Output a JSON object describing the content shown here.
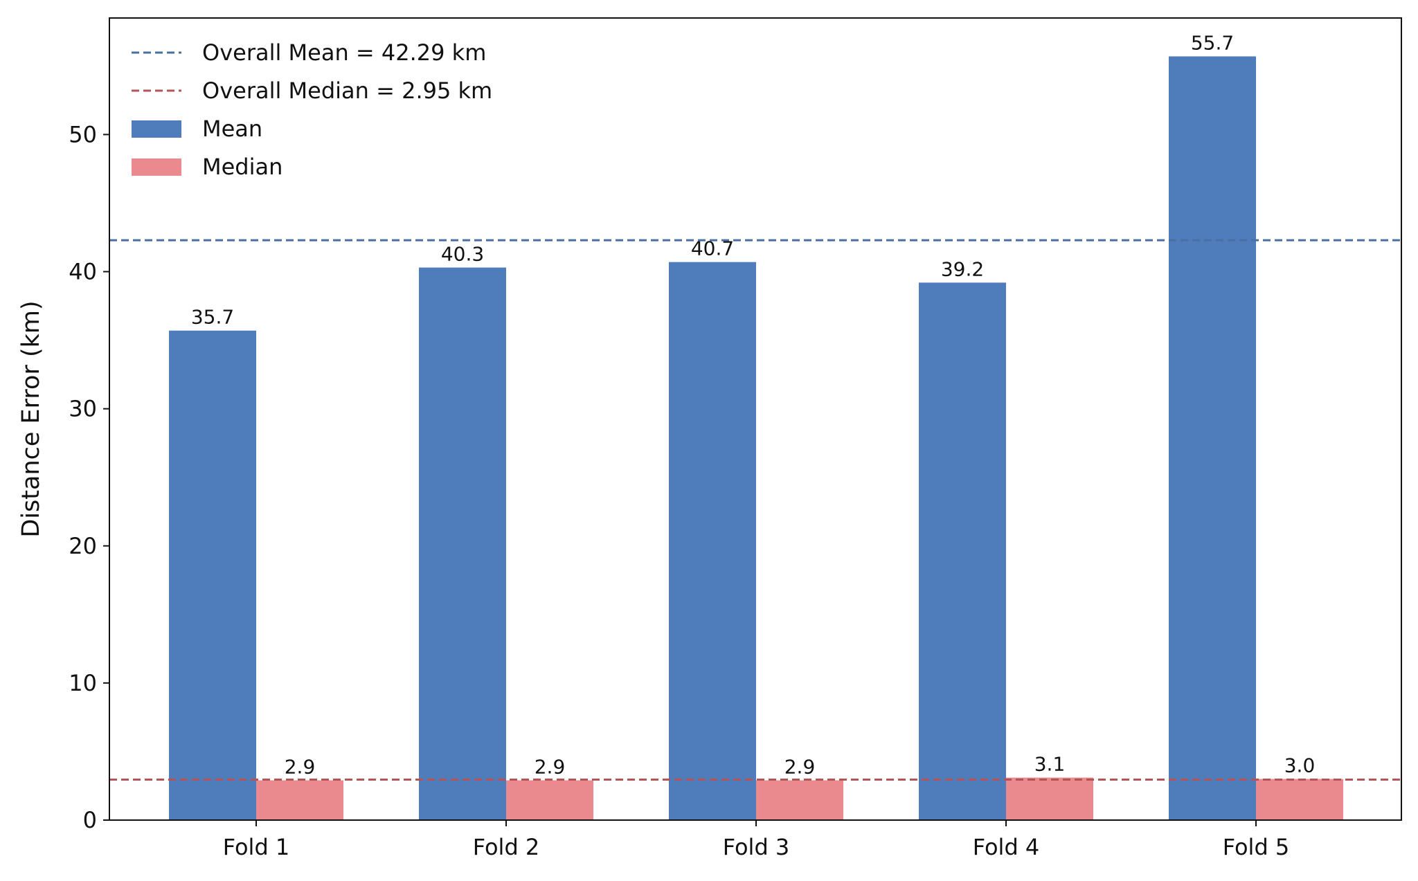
{
  "chart_data": {
    "type": "bar",
    "title": "",
    "xlabel": "",
    "ylabel": "Distance Error (km)",
    "categories": [
      "Fold 1",
      "Fold 2",
      "Fold 3",
      "Fold 4",
      "Fold 5"
    ],
    "ylim": [
      0,
      58.5
    ],
    "yticks": [
      0,
      10,
      20,
      30,
      40,
      50
    ],
    "grid": false,
    "legend_position": "top-left",
    "series": [
      {
        "name": "Mean",
        "values": [
          35.7,
          40.3,
          40.7,
          39.2,
          55.7
        ],
        "labels": [
          "35.7",
          "40.3",
          "40.7",
          "39.2",
          "55.7"
        ],
        "color": "#4f7cba"
      },
      {
        "name": "Median",
        "values": [
          2.9,
          2.9,
          2.9,
          3.1,
          3.0
        ],
        "labels": [
          "2.9",
          "2.9",
          "2.9",
          "3.1",
          "3.0"
        ],
        "color": "#ea8a8f"
      }
    ],
    "reference_lines": [
      {
        "name": "Overall Mean = 42.29 km",
        "value": 42.29,
        "color": "#4a6fa1",
        "style": "dashed"
      },
      {
        "name": "Overall Median = 2.95 km",
        "value": 2.95,
        "color": "#b55457",
        "style": "dashed"
      }
    ]
  }
}
